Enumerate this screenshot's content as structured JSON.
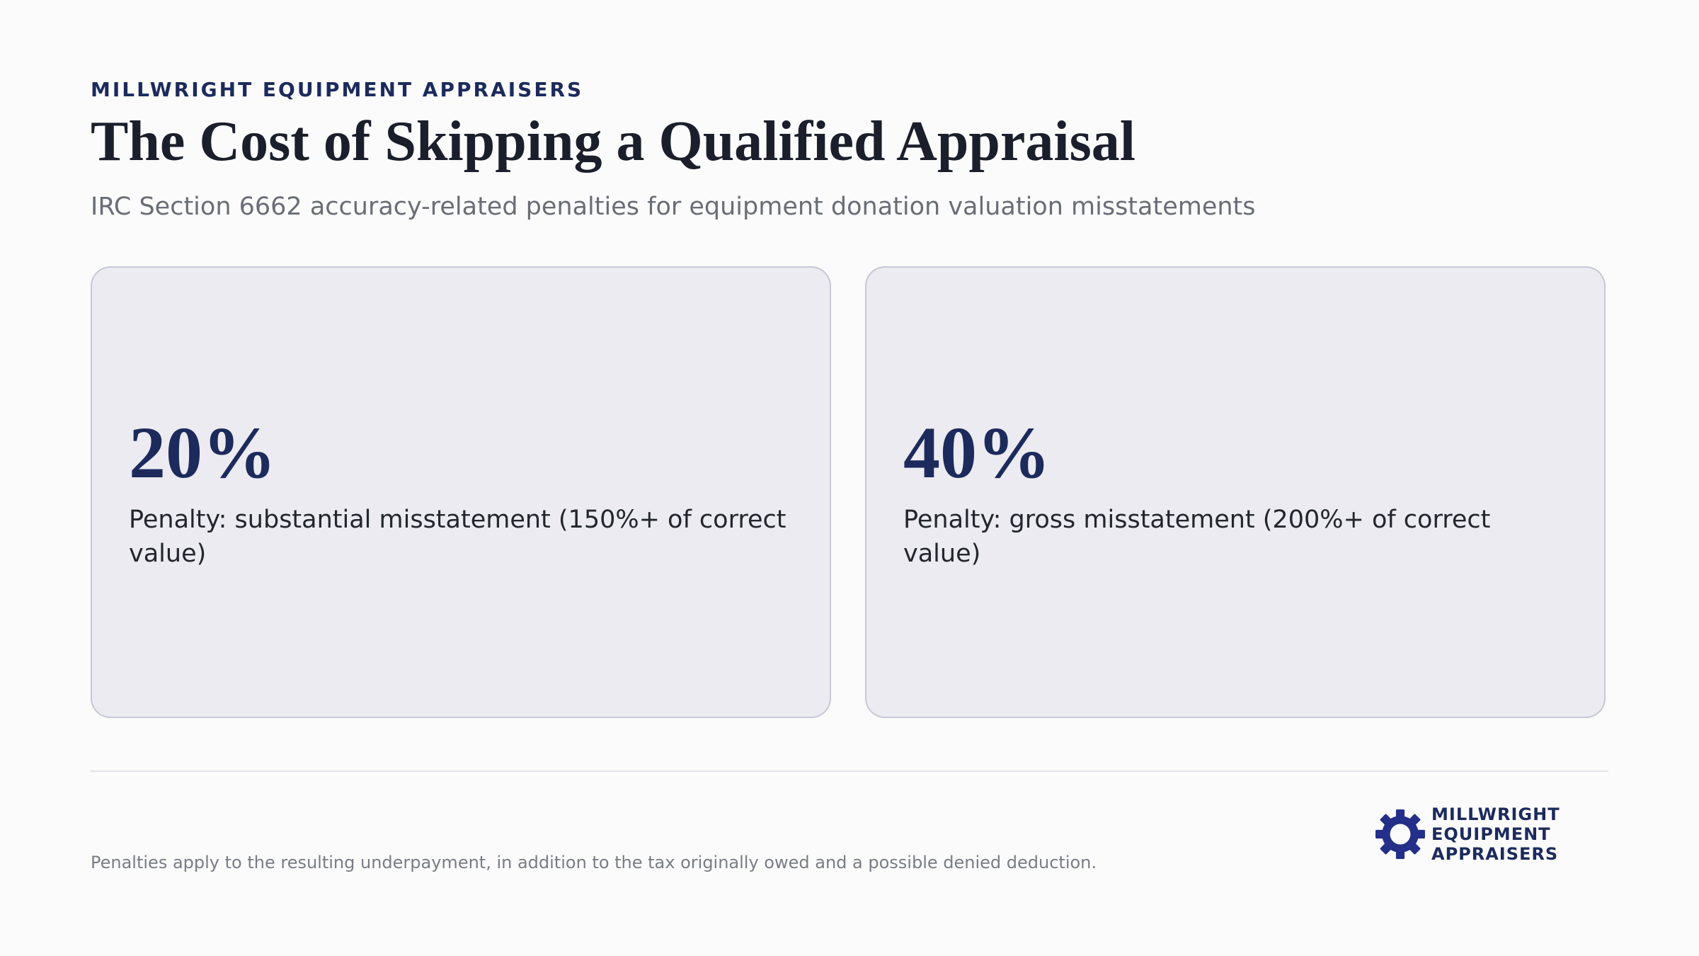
{
  "header": {
    "eyebrow": "MILLWRIGHT EQUIPMENT APPRAISERS",
    "title": "The Cost of Skipping a Qualified Appraisal",
    "subtitle": "IRC Section 6662 accuracy-related penalties for equipment donation valuation misstatements"
  },
  "cards": [
    {
      "stat": "20%",
      "description": "Penalty: substantial misstatement (150%+ of correct value)"
    },
    {
      "stat": "40%",
      "description": "Penalty: gross misstatement (200%+ of correct value)"
    }
  ],
  "footer": {
    "note": "Penalties apply to the resulting underpayment, in addition to the tax originally owed and a possible denied deduction.",
    "logo": {
      "icon": "gear-icon",
      "lines": [
        "MILLWRIGHT",
        "EQUIPMENT",
        "APPRAISERS"
      ]
    }
  },
  "colors": {
    "navy": "#1c2a5c",
    "card_bg": "#ebebf1",
    "card_border": "#c6c8d6"
  }
}
